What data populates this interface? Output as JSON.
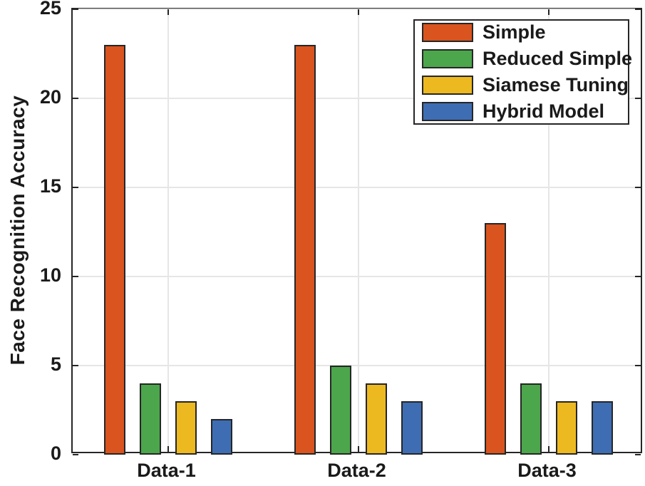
{
  "chart_data": {
    "type": "bar",
    "title": "",
    "xlabel": "",
    "ylabel": "Face Recognition Accuracy",
    "categories": [
      "Data-1",
      "Data-2",
      "Data-3"
    ],
    "series": [
      {
        "name": "Simple",
        "color": "#D9541E",
        "values": [
          23,
          23,
          13
        ]
      },
      {
        "name": "Reduced Simple",
        "color": "#4CA64C",
        "values": [
          4,
          5,
          4
        ]
      },
      {
        "name": "Siamese Tuning",
        "color": "#EDB920",
        "values": [
          3,
          4,
          3
        ]
      },
      {
        "name": "Hybrid Model",
        "color": "#3E6DB3",
        "values": [
          2,
          3,
          3
        ]
      }
    ],
    "ylim": [
      0,
      25
    ],
    "yticks": [
      "0",
      "5",
      "10",
      "15",
      "20",
      "25"
    ],
    "grid": true,
    "legend_position": "top-right",
    "colors": {
      "bar_edge": "#262626",
      "grid": "#E6E6E6",
      "axis": "#262626",
      "text": "#1A1A1A",
      "background": "#FFFFFF"
    }
  }
}
